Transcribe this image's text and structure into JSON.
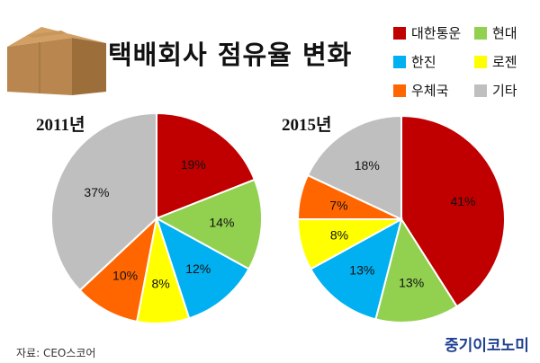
{
  "title": "택배회사 점유율 변화",
  "source": "자료: CEO스코어",
  "brand": "중기이코노미",
  "colors": {
    "대한통운": "#c00000",
    "현대": "#92d050",
    "한진": "#00b0f0",
    "로젠": "#ffff00",
    "우체국": "#ff6600",
    "기타": "#bfbfbf"
  },
  "legend": [
    {
      "label": "대한통운",
      "color": "#c00000"
    },
    {
      "label": "현대",
      "color": "#92d050"
    },
    {
      "label": "한진",
      "color": "#00b0f0"
    },
    {
      "label": "로젠",
      "color": "#ffff00"
    },
    {
      "label": "우체국",
      "color": "#ff6600"
    },
    {
      "label": "기타",
      "color": "#bfbfbf"
    }
  ],
  "chart_data": [
    {
      "type": "pie",
      "title": "2011년",
      "slices": [
        {
          "label": "대한통운",
          "value": 19,
          "text": "19%"
        },
        {
          "label": "현대",
          "value": 14,
          "text": "14%"
        },
        {
          "label": "한진",
          "value": 12,
          "text": "12%"
        },
        {
          "label": "로젠",
          "value": 8,
          "text": "8%"
        },
        {
          "label": "우체국",
          "value": 10,
          "text": "10%"
        },
        {
          "label": "기타",
          "value": 37,
          "text": "37%"
        }
      ]
    },
    {
      "type": "pie",
      "title": "2015년",
      "slices": [
        {
          "label": "대한통운",
          "value": 41,
          "text": "41%"
        },
        {
          "label": "현대",
          "value": 13,
          "text": "13%"
        },
        {
          "label": "한진",
          "value": 13,
          "text": "13%"
        },
        {
          "label": "로젠",
          "value": 8,
          "text": "8%"
        },
        {
          "label": "우체국",
          "value": 7,
          "text": "7%"
        },
        {
          "label": "기타",
          "value": 18,
          "text": "18%"
        }
      ]
    }
  ]
}
